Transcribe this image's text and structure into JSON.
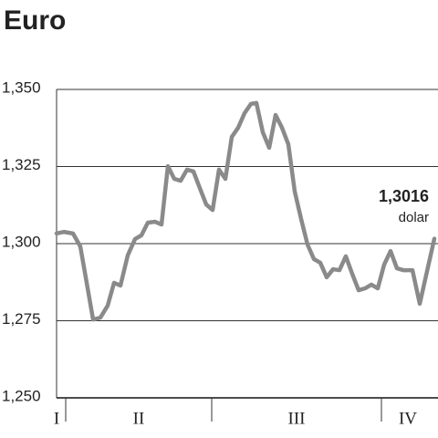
{
  "chart_data": {
    "type": "line",
    "title": "Euro",
    "annotations": [
      "1,3016",
      "dolar"
    ],
    "x": [
      0,
      8,
      18,
      26,
      33,
      40,
      48,
      56,
      63,
      70,
      78,
      86,
      93,
      100,
      108,
      115,
      122,
      129,
      136,
      143,
      150,
      157,
      164,
      171,
      178,
      185,
      192,
      199,
      206,
      213,
      219,
      226,
      233,
      240,
      247,
      254,
      261,
      268,
      275,
      282,
      289,
      296,
      303,
      310,
      317,
      324,
      331,
      338,
      345,
      352,
      359,
      366,
      373,
      380,
      390,
      398,
      414
    ],
    "series": [
      {
        "color": "#8a8a8a",
        "values": [
          1.3033,
          1.3038,
          1.3033,
          1.2991,
          1.2873,
          1.2754,
          1.276,
          1.2799,
          1.2873,
          1.2864,
          1.2962,
          1.3015,
          1.3027,
          1.3068,
          1.3071,
          1.3062,
          1.3251,
          1.321,
          1.3204,
          1.324,
          1.3234,
          1.318,
          1.3127,
          1.3109,
          1.324,
          1.321,
          1.3346,
          1.3376,
          1.3423,
          1.3453,
          1.3456,
          1.3361,
          1.3311,
          1.3417,
          1.3376,
          1.3322,
          1.3169,
          1.308,
          1.2997,
          1.295,
          1.2938,
          1.2891,
          1.2917,
          1.2914,
          1.2959,
          1.2902,
          1.2849,
          1.2855,
          1.2867,
          1.2855,
          1.2932,
          1.2976,
          1.292,
          1.2914,
          1.2914,
          1.2805,
          1.3016
        ]
      }
    ],
    "xlim": [
      0,
      414
    ],
    "xticks": [
      10,
      170,
      356
    ],
    "periods": [
      "I",
      "II",
      "III",
      "IV"
    ],
    "ylim": [
      1.25,
      1.35
    ],
    "yticks": [
      {
        "value": 1.25,
        "label": "1,250"
      },
      {
        "value": 1.275,
        "label": "1,275"
      },
      {
        "value": 1.3,
        "label": "1,300"
      },
      {
        "value": 1.325,
        "label": "1,325"
      },
      {
        "value": 1.35,
        "label": "1,350"
      }
    ],
    "grid": true
  }
}
